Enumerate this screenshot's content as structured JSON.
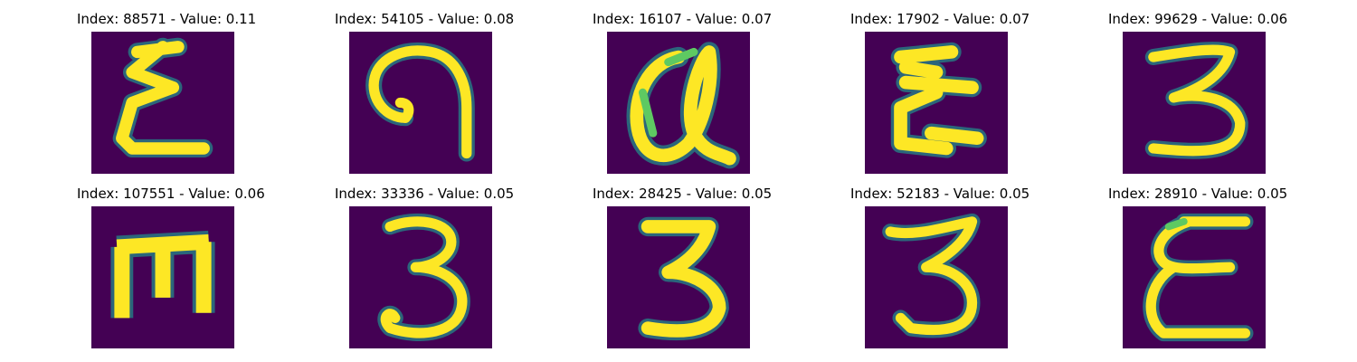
{
  "colors": {
    "background_dark": "#440154",
    "stroke_bright": "#fde725",
    "edge_mid": "#21918c",
    "edge_green": "#5ec962"
  },
  "panels": [
    {
      "title": "Index: 88571 - Value: 0.11",
      "glyph": "ξ-like handwritten character"
    },
    {
      "title": "Index: 54105 - Value: 0.08",
      "glyph": "curl / reversed 9 character"
    },
    {
      "title": "Index: 16107 - Value: 0.07",
      "glyph": "alpha-like loop character"
    },
    {
      "title": "Index: 17902 - Value: 0.07",
      "glyph": "ξ-like handwritten character"
    },
    {
      "title": "Index: 99629 - Value: 0.06",
      "glyph": "digit 3"
    },
    {
      "title": "Index: 107551 - Value: 0.06",
      "glyph": "E-like character (rotated)"
    },
    {
      "title": "Index: 33336 - Value: 0.05",
      "glyph": "digit 3"
    },
    {
      "title": "Index: 28425 - Value: 0.05",
      "glyph": "digit 3"
    },
    {
      "title": "Index: 52183 - Value: 0.05",
      "glyph": "digit 3"
    },
    {
      "title": "Index: 28910 - Value: 0.05",
      "glyph": "ε-like handwritten character"
    }
  ]
}
